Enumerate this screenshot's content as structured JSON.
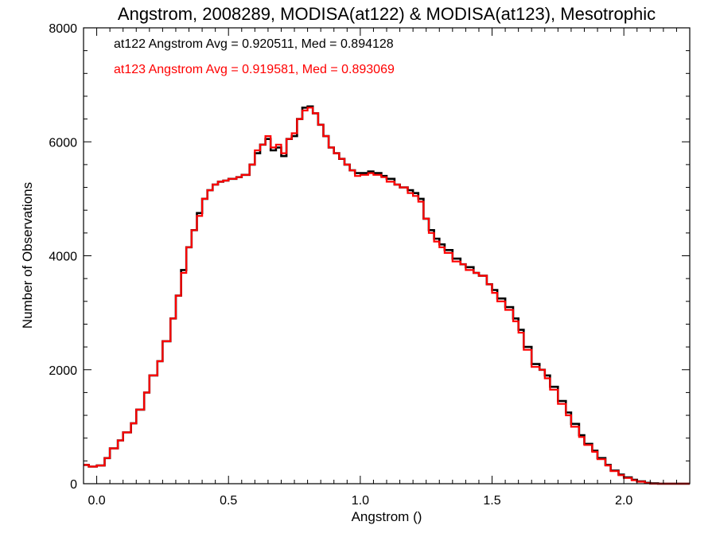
{
  "chart_data": {
    "type": "line",
    "step": true,
    "title": "Angstrom, 2008289, MODISA(at122) & MODISA(at123), Mesotrophic",
    "xlabel": "Angstrom ()",
    "ylabel": "Number of Observations",
    "xlim": [
      -0.05,
      2.25
    ],
    "ylim": [
      0,
      8000
    ],
    "xticks": [
      0.0,
      0.5,
      1.0,
      1.5,
      2.0
    ],
    "xtick_labels": [
      "0.0",
      "0.5",
      "1.0",
      "1.5",
      "2.0"
    ],
    "yticks": [
      0,
      2000,
      4000,
      6000,
      8000
    ],
    "ytick_labels": [
      "0",
      "2000",
      "4000",
      "6000",
      "8000"
    ],
    "grid": false,
    "legend_placement": "top-left",
    "series": [
      {
        "name": "at122",
        "color": "#000000",
        "legend_text": "at122 Angstrom Avg = 0.920511, Med = 0.894128",
        "x": [
          -0.05,
          -0.03,
          0.0,
          0.03,
          0.05,
          0.08,
          0.1,
          0.13,
          0.15,
          0.18,
          0.2,
          0.23,
          0.25,
          0.28,
          0.3,
          0.32,
          0.34,
          0.36,
          0.38,
          0.4,
          0.42,
          0.44,
          0.46,
          0.48,
          0.5,
          0.53,
          0.55,
          0.58,
          0.6,
          0.62,
          0.64,
          0.66,
          0.68,
          0.7,
          0.72,
          0.74,
          0.76,
          0.78,
          0.8,
          0.82,
          0.84,
          0.86,
          0.88,
          0.9,
          0.92,
          0.94,
          0.96,
          0.98,
          1.0,
          1.03,
          1.05,
          1.08,
          1.1,
          1.13,
          1.15,
          1.18,
          1.2,
          1.22,
          1.24,
          1.26,
          1.28,
          1.3,
          1.32,
          1.35,
          1.38,
          1.4,
          1.43,
          1.45,
          1.48,
          1.5,
          1.52,
          1.55,
          1.58,
          1.6,
          1.62,
          1.65,
          1.68,
          1.7,
          1.72,
          1.75,
          1.78,
          1.8,
          1.83,
          1.85,
          1.88,
          1.9,
          1.93,
          1.95,
          1.98,
          2.0,
          2.03,
          2.05,
          2.08,
          2.1,
          2.13,
          2.15,
          2.2,
          2.25
        ],
        "y": [
          330,
          300,
          320,
          450,
          620,
          760,
          900,
          1060,
          1300,
          1600,
          1900,
          2150,
          2500,
          2900,
          3300,
          3750,
          4150,
          4450,
          4750,
          5000,
          5150,
          5250,
          5300,
          5320,
          5350,
          5380,
          5420,
          5600,
          5800,
          5950,
          6050,
          5850,
          5900,
          5750,
          6050,
          6100,
          6400,
          6600,
          6620,
          6500,
          6300,
          6100,
          5900,
          5800,
          5700,
          5600,
          5500,
          5450,
          5450,
          5480,
          5450,
          5400,
          5350,
          5250,
          5200,
          5150,
          5100,
          5000,
          4650,
          4450,
          4300,
          4200,
          4100,
          3950,
          3850,
          3800,
          3700,
          3650,
          3500,
          3400,
          3250,
          3100,
          2900,
          2700,
          2400,
          2100,
          2000,
          1900,
          1700,
          1450,
          1250,
          1050,
          850,
          700,
          580,
          450,
          330,
          230,
          160,
          110,
          70,
          40,
          15,
          5,
          0,
          0,
          0,
          0
        ]
      },
      {
        "name": "at123",
        "color": "#ff0000",
        "legend_text": "at123 Angstrom Avg = 0.919581, Med = 0.893069",
        "x": [
          -0.05,
          -0.03,
          0.0,
          0.03,
          0.05,
          0.08,
          0.1,
          0.13,
          0.15,
          0.18,
          0.2,
          0.23,
          0.25,
          0.28,
          0.3,
          0.32,
          0.34,
          0.36,
          0.38,
          0.4,
          0.42,
          0.44,
          0.46,
          0.48,
          0.5,
          0.53,
          0.55,
          0.58,
          0.6,
          0.62,
          0.64,
          0.66,
          0.68,
          0.7,
          0.72,
          0.74,
          0.76,
          0.78,
          0.8,
          0.82,
          0.84,
          0.86,
          0.88,
          0.9,
          0.92,
          0.94,
          0.96,
          0.98,
          1.0,
          1.03,
          1.05,
          1.08,
          1.1,
          1.13,
          1.15,
          1.18,
          1.2,
          1.22,
          1.24,
          1.26,
          1.28,
          1.3,
          1.32,
          1.35,
          1.38,
          1.4,
          1.43,
          1.45,
          1.48,
          1.5,
          1.52,
          1.55,
          1.58,
          1.6,
          1.62,
          1.65,
          1.68,
          1.7,
          1.72,
          1.75,
          1.78,
          1.8,
          1.83,
          1.85,
          1.88,
          1.9,
          1.93,
          1.95,
          1.98,
          2.0,
          2.03,
          2.05,
          2.08,
          2.1,
          2.13,
          2.15,
          2.2,
          2.25
        ],
        "y": [
          330,
          300,
          320,
          450,
          620,
          760,
          900,
          1060,
          1300,
          1600,
          1900,
          2150,
          2500,
          2900,
          3300,
          3700,
          4150,
          4450,
          4700,
          5000,
          5150,
          5250,
          5300,
          5320,
          5350,
          5380,
          5420,
          5600,
          5850,
          5950,
          6100,
          5900,
          5950,
          5800,
          6050,
          6150,
          6400,
          6550,
          6600,
          6500,
          6300,
          6100,
          5900,
          5800,
          5700,
          5600,
          5500,
          5400,
          5420,
          5450,
          5420,
          5380,
          5300,
          5250,
          5200,
          5100,
          5050,
          4950,
          4650,
          4400,
          4250,
          4150,
          4050,
          3900,
          3850,
          3750,
          3700,
          3650,
          3500,
          3350,
          3200,
          3050,
          2850,
          2650,
          2350,
          2050,
          2000,
          1850,
          1650,
          1400,
          1200,
          1000,
          820,
          680,
          560,
          430,
          320,
          220,
          150,
          100,
          60,
          35,
          10,
          0,
          0,
          0,
          0,
          0
        ]
      }
    ]
  }
}
